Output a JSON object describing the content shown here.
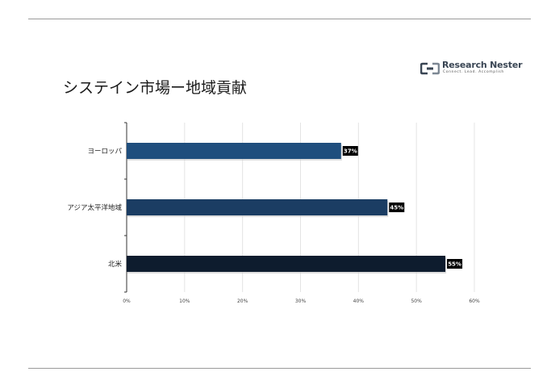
{
  "title": "システイン市場ー地域貢献",
  "logo": {
    "name": "Research Nester",
    "tagline": "Connect. Lead. Accomplish"
  },
  "chart_data": {
    "type": "bar",
    "orientation": "horizontal",
    "title": "システイン市場ー地域貢献",
    "categories": [
      "ヨーロッパ",
      "アジア太平洋地域",
      "北米"
    ],
    "values": [
      37,
      45,
      55
    ],
    "data_labels": [
      "37%",
      "45%",
      "55%"
    ],
    "bar_colors": [
      "#1f4e7d",
      "#1b3d63",
      "#0e1c2e"
    ],
    "xlim": [
      0,
      60
    ],
    "x_ticks": [
      0,
      10,
      20,
      30,
      40,
      50,
      60
    ],
    "x_tick_labels": [
      "0%",
      "10%",
      "20%",
      "30%",
      "40%",
      "50%",
      "60%"
    ],
    "grid": "vertical",
    "legend": "none",
    "xlabel": "",
    "ylabel": ""
  }
}
